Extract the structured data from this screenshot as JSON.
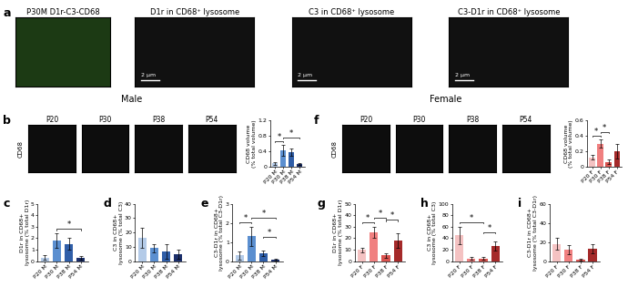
{
  "panel_labels": [
    "a",
    "b",
    "c",
    "d",
    "e",
    "f",
    "g",
    "h",
    "i"
  ],
  "images": [
    {
      "title": "P30M D1r-C3-CD68"
    },
    {
      "title": "D1r in CD68⁺ lysosome",
      "scale_bar": "2 μm"
    },
    {
      "title": "C3 in CD68⁺ lysosome",
      "scale_bar": "2 μm"
    },
    {
      "title": "C3-D1r in CD68⁺ lysosome",
      "scale_bar": "2 μm"
    }
  ],
  "cd68_rows": [
    {
      "section": "Male",
      "stain": "CD68",
      "timepoints": [
        "P20",
        "P30",
        "P38",
        "P54"
      ]
    },
    {
      "section": "Female",
      "stain": "CD68",
      "timepoints": [
        "P20",
        "P30",
        "P38",
        "P54"
      ]
    }
  ],
  "chart_data": [
    {
      "type": "bar",
      "ylabel": "CD68 volume\n(% total volume)",
      "categories": [
        "P20 M",
        "P30 M",
        "P38 M",
        "P54 M"
      ],
      "values": [
        0.08,
        0.42,
        0.38,
        0.07
      ],
      "errors": [
        0.04,
        0.15,
        0.1,
        0.03
      ],
      "colors": [
        "#b4cbe8",
        "#5b8fd0",
        "#2f5ea8",
        "#1b2f6b"
      ],
      "ylim": [
        0,
        1.2
      ],
      "yticks": [
        0,
        0.4,
        0.8,
        1.2
      ],
      "annotations": [
        {
          "between": [
            "P20 M",
            "P30 M"
          ],
          "text": "*"
        },
        {
          "between": [
            "P30 M",
            "P54 M"
          ],
          "text": "*"
        }
      ]
    },
    {
      "type": "bar",
      "ylabel": "D1r in CD68+\nlysosome (% total D1r)",
      "categories": [
        "P20 M",
        "P30 M",
        "P38 M",
        "P54 M"
      ],
      "values": [
        0.3,
        1.8,
        1.5,
        0.3
      ],
      "errors": [
        0.2,
        0.6,
        0.5,
        0.15
      ],
      "colors": [
        "#b4cbe8",
        "#5b8fd0",
        "#2f5ea8",
        "#1b2f6b"
      ],
      "ylim": [
        0,
        5
      ],
      "yticks": [
        0,
        1,
        2,
        3,
        4,
        5
      ],
      "annotations": [
        {
          "between": [
            "P30 M",
            "P54 M"
          ],
          "text": "*"
        }
      ]
    },
    {
      "type": "bar",
      "ylabel": "C3 in CD68+\nlysosome (% total C3)",
      "categories": [
        "P20 M",
        "P30 M",
        "P38 M",
        "P54 M"
      ],
      "values": [
        16,
        9,
        7,
        5
      ],
      "errors": [
        7,
        3,
        5,
        3
      ],
      "colors": [
        "#b4cbe8",
        "#5b8fd0",
        "#2f5ea8",
        "#1b2f6b"
      ],
      "ylim": [
        0,
        40
      ],
      "yticks": [
        0,
        10,
        20,
        30,
        40
      ],
      "annotations": []
    },
    {
      "type": "bar",
      "ylabel": "C3-D1r in CD68+\nlysosome (% total C3-D1r)",
      "categories": [
        "P20 M",
        "P30 M",
        "P38 M",
        "P54 M"
      ],
      "values": [
        0.3,
        1.3,
        0.4,
        0.1
      ],
      "errors": [
        0.2,
        0.5,
        0.15,
        0.05
      ],
      "colors": [
        "#b4cbe8",
        "#5b8fd0",
        "#2f5ea8",
        "#1b2f6b"
      ],
      "ylim": [
        0,
        3
      ],
      "yticks": [
        0,
        1,
        2,
        3
      ],
      "annotations": [
        {
          "between": [
            "P20 M",
            "P30 M"
          ],
          "text": "*"
        },
        {
          "between": [
            "P30 M",
            "P54 M"
          ],
          "text": "*"
        },
        {
          "between": [
            "P38 M",
            "P54 M"
          ],
          "text": "*"
        }
      ]
    },
    {
      "type": "bar",
      "ylabel": "CD68 volume\n(% total volume)",
      "categories": [
        "P20 F",
        "P30 F",
        "P38 F",
        "P54 F"
      ],
      "values": [
        0.12,
        0.3,
        0.06,
        0.2
      ],
      "errors": [
        0.03,
        0.05,
        0.03,
        0.1
      ],
      "colors": [
        "#f4c2c2",
        "#f08080",
        "#d9534f",
        "#a52a2a"
      ],
      "ylim": [
        0,
        0.6
      ],
      "yticks": [
        0,
        0.2,
        0.4,
        0.6
      ],
      "annotations": [
        {
          "between": [
            "P20 F",
            "P30 F"
          ],
          "text": "*"
        },
        {
          "between": [
            "P30 F",
            "P38 F"
          ],
          "text": "*"
        }
      ]
    },
    {
      "type": "bar",
      "ylabel": "D1r in CD68+\nlysosome (% total D1r)",
      "categories": [
        "P20 F",
        "P30 F",
        "P38 F",
        "P54 F"
      ],
      "values": [
        10,
        25,
        5,
        18
      ],
      "errors": [
        2,
        5,
        2,
        6
      ],
      "colors": [
        "#f4c2c2",
        "#f08080",
        "#d9534f",
        "#a52a2a"
      ],
      "ylim": [
        0,
        50
      ],
      "yticks": [
        0,
        10,
        20,
        30,
        40,
        50
      ],
      "annotations": [
        {
          "between": [
            "P20 F",
            "P30 F"
          ],
          "text": "*"
        },
        {
          "between": [
            "P30 F",
            "P38 F"
          ],
          "text": "*"
        },
        {
          "between": [
            "P38 F",
            "P54 F"
          ],
          "text": "*"
        }
      ]
    },
    {
      "type": "bar",
      "ylabel": "C3 in CD68+\nlysosome (% total C3)",
      "categories": [
        "P20 F",
        "P30 F",
        "P38 F",
        "P54 F"
      ],
      "values": [
        45,
        5,
        5,
        27
      ],
      "errors": [
        15,
        3,
        3,
        8
      ],
      "colors": [
        "#f4c2c2",
        "#f08080",
        "#d9534f",
        "#a52a2a"
      ],
      "ylim": [
        0,
        100
      ],
      "yticks": [
        0,
        20,
        40,
        60,
        80,
        100
      ],
      "annotations": [
        {
          "between": [
            "P20 F",
            "P38 F"
          ],
          "text": "*"
        },
        {
          "between": [
            "P38 F",
            "P54 F"
          ],
          "text": "*"
        }
      ]
    },
    {
      "type": "bar",
      "ylabel": "C3-D1r in CD68+\nlysosome (% total C3-D1r)",
      "categories": [
        "P20 F",
        "P30 F",
        "P38 F",
        "P54 F"
      ],
      "values": [
        18,
        12,
        2,
        13
      ],
      "errors": [
        6,
        5,
        1,
        5
      ],
      "colors": [
        "#f4c2c2",
        "#f08080",
        "#d9534f",
        "#a52a2a"
      ],
      "ylim": [
        0,
        60
      ],
      "yticks": [
        0,
        20,
        40,
        60
      ],
      "annotations": []
    }
  ]
}
